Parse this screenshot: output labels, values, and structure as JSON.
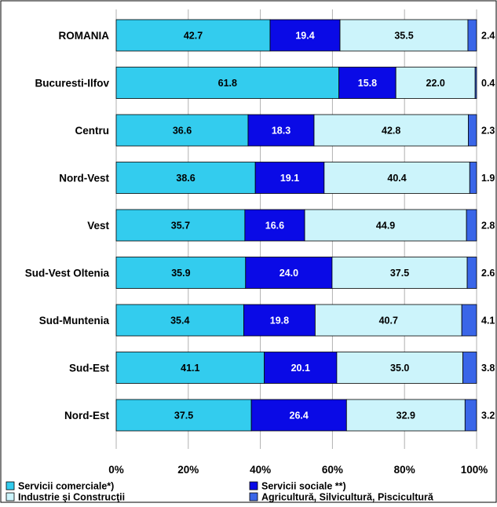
{
  "chart_data": {
    "type": "bar",
    "stacked": true,
    "orientation": "horizontal",
    "percent_stacked": true,
    "categories": [
      "ROMANIA",
      "Bucuresti-Ilfov",
      "Centru",
      "Nord-Vest",
      "Vest",
      "Sud-Vest Oltenia",
      "Sud-Muntenia",
      "Sud-Est",
      "Nord-Est"
    ],
    "series": [
      {
        "name": "Servicii comerciale*)",
        "color": "#33ccee",
        "values": [
          42.7,
          61.8,
          36.6,
          38.6,
          35.7,
          35.9,
          35.4,
          41.1,
          37.5
        ]
      },
      {
        "name": "Servicii sociale **)",
        "color": "#0a0ae6",
        "values": [
          19.4,
          15.8,
          18.3,
          19.1,
          16.6,
          24.0,
          19.8,
          20.1,
          26.4
        ]
      },
      {
        "name": "Industrie şi Construcţii",
        "color": "#ccf4fb",
        "values": [
          35.5,
          22.0,
          42.8,
          40.4,
          44.9,
          37.5,
          40.7,
          35.0,
          32.9
        ]
      },
      {
        "name": "Agricultură, Silvicultură, Piscicultură",
        "color": "#3a66e8",
        "values": [
          2.4,
          0.4,
          2.3,
          1.9,
          2.8,
          2.6,
          4.1,
          3.8,
          3.2
        ]
      }
    ],
    "x_ticks": [
      "0%",
      "20%",
      "40%",
      "60%",
      "80%",
      "100%"
    ],
    "xlim": [
      0,
      100
    ],
    "grid": true,
    "legend": "bottom",
    "last_series_labels_outside": true
  }
}
